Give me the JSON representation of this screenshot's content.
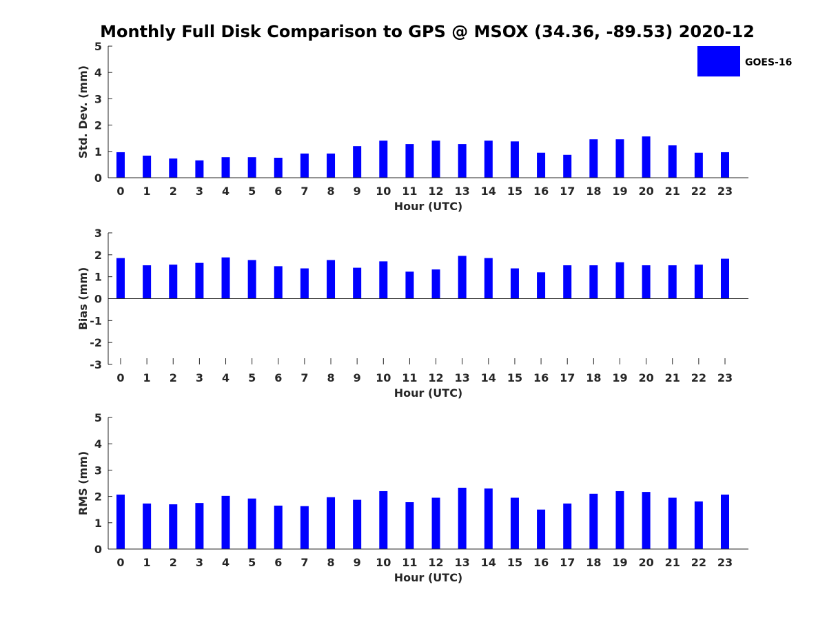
{
  "title": "Monthly Full Disk Comparison to GPS @ MSOX (34.36, -89.53) 2020-12",
  "legend": {
    "label": "GOES-16",
    "color": "#0000ff"
  },
  "chart_data": [
    {
      "type": "bar",
      "name": "std",
      "xlabel": "Hour (UTC)",
      "ylabel": "Std. Dev. (mm)",
      "ylim": [
        0,
        5
      ],
      "yticks": [
        0,
        1,
        2,
        3,
        4,
        5
      ],
      "categories": [
        "0",
        "1",
        "2",
        "3",
        "4",
        "5",
        "6",
        "7",
        "8",
        "9",
        "10",
        "11",
        "12",
        "13",
        "14",
        "15",
        "16",
        "17",
        "18",
        "19",
        "20",
        "21",
        "22",
        "23"
      ],
      "values": [
        0.97,
        0.84,
        0.73,
        0.66,
        0.78,
        0.78,
        0.76,
        0.92,
        0.92,
        1.2,
        1.41,
        1.28,
        1.41,
        1.28,
        1.41,
        1.38,
        0.95,
        0.87,
        1.46,
        1.46,
        1.57,
        1.23,
        0.95,
        0.97
      ],
      "grid": false
    },
    {
      "type": "bar",
      "name": "bias",
      "xlabel": "Hour (UTC)",
      "ylabel": "Bias (mm)",
      "ylim": [
        -3,
        3
      ],
      "yticks": [
        -3,
        -2,
        -1,
        0,
        1,
        2,
        3
      ],
      "categories": [
        "0",
        "1",
        "2",
        "3",
        "4",
        "5",
        "6",
        "7",
        "8",
        "9",
        "10",
        "11",
        "12",
        "13",
        "14",
        "15",
        "16",
        "17",
        "18",
        "19",
        "20",
        "21",
        "22",
        "23"
      ],
      "values": [
        1.85,
        1.52,
        1.55,
        1.63,
        1.88,
        1.76,
        1.48,
        1.38,
        1.76,
        1.41,
        1.7,
        1.23,
        1.33,
        1.95,
        1.85,
        1.38,
        1.2,
        1.52,
        1.52,
        1.66,
        1.52,
        1.52,
        1.55,
        1.82
      ],
      "grid": false
    },
    {
      "type": "bar",
      "name": "rms",
      "xlabel": "Hour (UTC)",
      "ylabel": "RMS (mm)",
      "ylim": [
        0,
        5
      ],
      "yticks": [
        0,
        1,
        2,
        3,
        4,
        5
      ],
      "categories": [
        "0",
        "1",
        "2",
        "3",
        "4",
        "5",
        "6",
        "7",
        "8",
        "9",
        "10",
        "11",
        "12",
        "13",
        "14",
        "15",
        "16",
        "17",
        "18",
        "19",
        "20",
        "21",
        "22",
        "23"
      ],
      "values": [
        2.07,
        1.73,
        1.7,
        1.75,
        2.02,
        1.92,
        1.65,
        1.63,
        1.97,
        1.87,
        2.2,
        1.78,
        1.95,
        2.33,
        2.3,
        1.95,
        1.5,
        1.73,
        2.1,
        2.2,
        2.17,
        1.95,
        1.81,
        2.07
      ],
      "grid": false
    }
  ]
}
